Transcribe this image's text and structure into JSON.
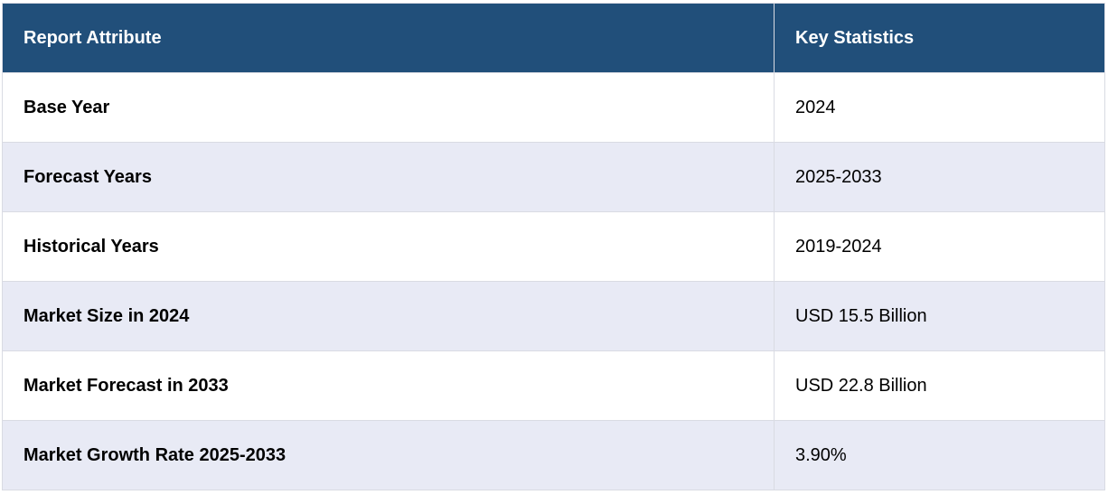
{
  "table": {
    "header": [
      "Report Attribute",
      "Key Statistics"
    ],
    "rows": [
      [
        "Base Year",
        "2024"
      ],
      [
        "Forecast Years",
        "2025-2033"
      ],
      [
        "Historical Years",
        "2019-2024"
      ],
      [
        "Market Size in 2024",
        "USD 15.5 Billion"
      ],
      [
        "Market Forecast in 2033",
        "USD 22.8 Billion"
      ],
      [
        "Market Growth Rate 2025-2033",
        "3.90%"
      ]
    ]
  }
}
